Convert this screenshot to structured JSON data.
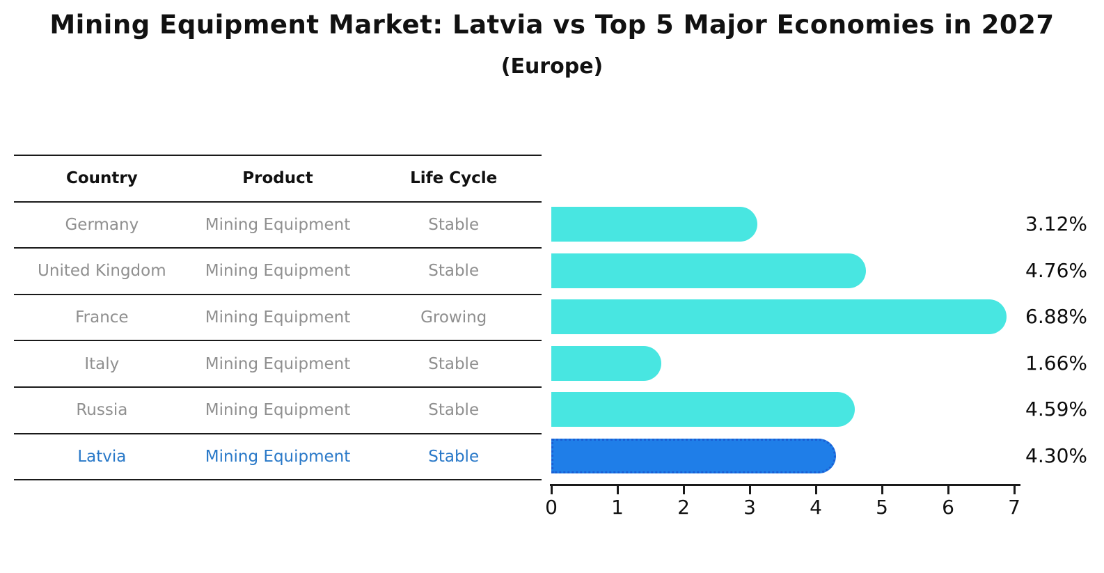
{
  "page": {
    "title": "Mining Equipment Market: Latvia vs Top 5 Major Economies in 2027",
    "subtitle": "(Europe)"
  },
  "table": {
    "headers": {
      "country": "Country",
      "product": "Product",
      "life_cycle": "Life Cycle"
    },
    "rows": [
      {
        "country": "Germany",
        "product": "Mining Equipment",
        "life_cycle": "Stable",
        "highlight": false
      },
      {
        "country": "United Kingdom",
        "product": "Mining Equipment",
        "life_cycle": "Stable",
        "highlight": false
      },
      {
        "country": "France",
        "product": "Mining Equipment",
        "life_cycle": "Growing",
        "highlight": false
      },
      {
        "country": "Italy",
        "product": "Mining Equipment",
        "life_cycle": "Stable",
        "highlight": false
      },
      {
        "country": "Russia",
        "product": "Mining Equipment",
        "life_cycle": "Stable",
        "highlight": false
      },
      {
        "country": "Latvia",
        "product": "Mining Equipment",
        "life_cycle": "Stable",
        "highlight": true
      }
    ]
  },
  "chart_data": {
    "type": "bar",
    "orientation": "horizontal",
    "title": "Mining Equipment Market: Latvia vs Top 5 Major Economies in 2027 (Europe)",
    "categories": [
      "Germany",
      "United Kingdom",
      "France",
      "Italy",
      "Russia",
      "Latvia"
    ],
    "values": [
      3.12,
      4.76,
      6.88,
      1.66,
      4.59,
      4.3
    ],
    "value_labels": [
      "3.12%",
      "4.76%",
      "6.88%",
      "1.66%",
      "4.59%",
      "4.30%"
    ],
    "highlight_category": "Latvia",
    "highlight_index": 5,
    "xlim": [
      0,
      7
    ],
    "x_ticks": [
      "0",
      "1",
      "2",
      "3",
      "4",
      "5",
      "6",
      "7"
    ],
    "grid": false,
    "legend": false
  },
  "colors": {
    "bar_default": "#48e6e1",
    "bar_highlight": "#1f7ee8",
    "bar_highlight_border": "#1a5fd4",
    "highlight_text": "#2878c8",
    "table_text": "#8f8f8f",
    "heading_text": "#111111",
    "axis": "#1a1a1a",
    "background": "#ffffff"
  }
}
